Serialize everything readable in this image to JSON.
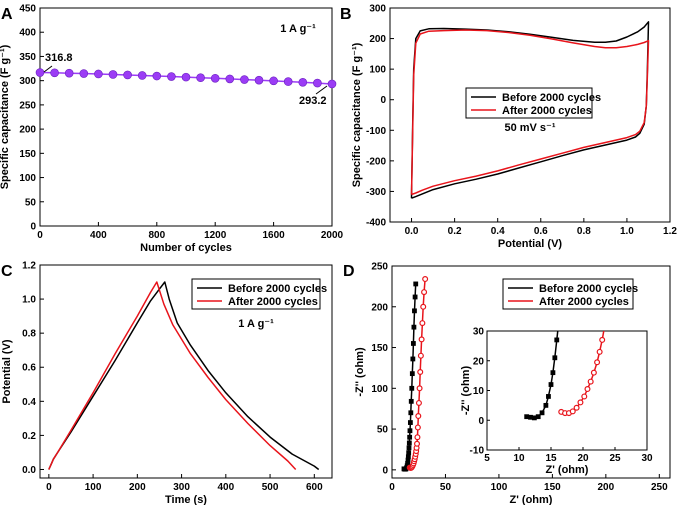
{
  "colors": {
    "black": "#000000",
    "red": "#e8141b",
    "purple": "#9b3cf5",
    "axis": "#000000"
  },
  "chart_data": [
    {
      "id": "A",
      "panel_label": "A",
      "type": "scatter",
      "xlabel": "Number of cycles",
      "ylabel": "Specific capacitance (F g⁻¹)",
      "xlim": [
        0,
        2000
      ],
      "ylim": [
        0,
        450
      ],
      "xticks": [
        0,
        400,
        800,
        1200,
        1600,
        2000
      ],
      "yticks": [
        0,
        50,
        100,
        150,
        200,
        250,
        300,
        350,
        400,
        450
      ],
      "annotation": "1 A g⁻¹",
      "labels": {
        "start": "316.8",
        "end": "293.2"
      },
      "series": [
        {
          "x": [
            0,
            100,
            200,
            300,
            400,
            500,
            600,
            700,
            800,
            900,
            1000,
            1100,
            1200,
            1300,
            1400,
            1500,
            1600,
            1700,
            1800,
            1900,
            2000
          ],
          "y": [
            316.8,
            316.2,
            315.5,
            314.7,
            313.8,
            312.8,
            311.8,
            310.7,
            309.6,
            308.5,
            307.3,
            306.1,
            304.9,
            303.6,
            302.3,
            301.0,
            299.6,
            298.1,
            296.6,
            295.0,
            293.2
          ]
        }
      ]
    },
    {
      "id": "B",
      "panel_label": "B",
      "type": "line",
      "xlabel": "Potential (V)",
      "ylabel": "Specific capacitance (F g⁻¹)",
      "xlim": [
        -0.1,
        1.2
      ],
      "ylim": [
        -400,
        300
      ],
      "xticks": [
        0.0,
        0.2,
        0.4,
        0.6,
        0.8,
        1.0,
        1.2
      ],
      "yticks": [
        -400,
        -300,
        -200,
        -100,
        0,
        100,
        200,
        300
      ],
      "annotation": "50 mV s⁻¹",
      "legend": {
        "entries": [
          "Before 2000 cycles",
          "After 2000 cycles"
        ]
      },
      "series": [
        {
          "name": "Before 2000 cycles",
          "upper": {
            "x": [
              0.0,
              0.005,
              0.01,
              0.02,
              0.04,
              0.08,
              0.15,
              0.25,
              0.35,
              0.45,
              0.55,
              0.65,
              0.75,
              0.85,
              0.9,
              0.95,
              1.0,
              1.05,
              1.08,
              1.1
            ],
            "y": [
              -322,
              -100,
              100,
              200,
              225,
              232,
              233,
              231,
              228,
              222,
              214,
              204,
              194,
              188,
              188,
              192,
              205,
              222,
              238,
              255
            ]
          },
          "lower": {
            "x": [
              1.1,
              1.095,
              1.09,
              1.08,
              1.06,
              1.04,
              1.0,
              0.9,
              0.8,
              0.7,
              0.6,
              0.5,
              0.4,
              0.3,
              0.2,
              0.1,
              0.05,
              0.02,
              0.0
            ],
            "y": [
              255,
              100,
              -20,
              -80,
              -110,
              -122,
              -132,
              -148,
              -164,
              -183,
              -203,
              -223,
              -243,
              -260,
              -275,
              -294,
              -308,
              -317,
              -322
            ]
          }
        },
        {
          "name": "After 2000 cycles",
          "upper": {
            "x": [
              0.0,
              0.005,
              0.01,
              0.02,
              0.04,
              0.08,
              0.15,
              0.25,
              0.35,
              0.45,
              0.55,
              0.65,
              0.75,
              0.85,
              0.9,
              0.95,
              1.0,
              1.05,
              1.08,
              1.1
            ],
            "y": [
              -310,
              -120,
              80,
              185,
              215,
              224,
              226,
              228,
              226,
              220,
              211,
              199,
              186,
              174,
              170,
              170,
              174,
              181,
              187,
              193
            ]
          },
          "lower": {
            "x": [
              1.1,
              1.095,
              1.09,
              1.08,
              1.06,
              1.04,
              1.0,
              0.9,
              0.8,
              0.7,
              0.6,
              0.5,
              0.4,
              0.3,
              0.2,
              0.1,
              0.05,
              0.02,
              0.0
            ],
            "y": [
              193,
              80,
              -20,
              -75,
              -103,
              -114,
              -124,
              -140,
              -156,
              -175,
              -194,
              -213,
              -233,
              -250,
              -265,
              -283,
              -296,
              -305,
              -310
            ]
          }
        }
      ]
    },
    {
      "id": "C",
      "panel_label": "C",
      "type": "line",
      "xlabel": "Time (s)",
      "ylabel": "Potential (V)",
      "xlim": [
        -20,
        640
      ],
      "ylim": [
        -0.05,
        1.2
      ],
      "xticks": [
        0,
        100,
        200,
        300,
        400,
        500,
        600
      ],
      "yticks": [
        0.0,
        0.2,
        0.4,
        0.6,
        0.8,
        1.0,
        1.2
      ],
      "annotation": "1 A g⁻¹",
      "legend": {
        "entries": [
          "Before 2000 cycles",
          "After 2000 cycles"
        ]
      },
      "series": [
        {
          "name": "Before 2000 cycles",
          "x": [
            0,
            5,
            10,
            20,
            50,
            100,
            150,
            200,
            230,
            250,
            262,
            272,
            290,
            320,
            360,
            400,
            450,
            500,
            550,
            600,
            610
          ],
          "y": [
            0.0,
            0.03,
            0.06,
            0.1,
            0.22,
            0.43,
            0.64,
            0.86,
            0.99,
            1.06,
            1.1,
            1.0,
            0.86,
            0.73,
            0.58,
            0.45,
            0.31,
            0.19,
            0.09,
            0.02,
            0.0
          ]
        },
        {
          "name": "After 2000 cycles",
          "x": [
            0,
            5,
            10,
            20,
            50,
            100,
            150,
            200,
            230,
            244,
            260,
            280,
            320,
            360,
            400,
            450,
            500,
            540,
            558
          ],
          "y": [
            0.0,
            0.03,
            0.06,
            0.1,
            0.23,
            0.45,
            0.68,
            0.9,
            1.04,
            1.1,
            0.97,
            0.85,
            0.68,
            0.54,
            0.41,
            0.27,
            0.14,
            0.05,
            0.0
          ]
        }
      ]
    },
    {
      "id": "D",
      "panel_label": "D",
      "type": "scatter",
      "xlabel": "Z' (ohm)",
      "ylabel": "-Z'' (ohm)",
      "xlim": [
        0,
        260
      ],
      "ylim": [
        -10,
        250
      ],
      "xticks": [
        0,
        50,
        100,
        150,
        200,
        250
      ],
      "yticks": [
        0,
        50,
        100,
        150,
        200,
        250
      ],
      "legend": {
        "entries": [
          "Before 2000 cycles",
          "After 2000 cycles"
        ]
      },
      "series": [
        {
          "name": "Before 2000 cycles",
          "marker": "square",
          "x": [
            11.2,
            11.8,
            12.4,
            13.0,
            13.6,
            14.2,
            14.6,
            15.0,
            15.3,
            15.6,
            15.9,
            16.2,
            16.5,
            16.8,
            17.2,
            17.6,
            18.0,
            18.5,
            19.0,
            19.5,
            20.0,
            20.5,
            21.0,
            21.6,
            22.2
          ],
          "y": [
            1.2,
            1.0,
            0.8,
            1.2,
            2.5,
            5,
            8,
            12,
            16,
            21,
            27,
            33,
            40,
            48,
            58,
            70,
            84,
            100,
            118,
            136,
            155,
            175,
            195,
            212,
            228
          ]
        },
        {
          "name": "After 2000 cycles",
          "marker": "circle",
          "x": [
            16.6,
            17.2,
            17.8,
            18.4,
            19.0,
            19.6,
            20.2,
            20.7,
            21.2,
            21.7,
            22.2,
            22.6,
            23.0,
            23.4,
            23.8,
            24.2,
            24.6,
            25.2,
            25.8,
            26.4,
            27.0,
            27.7,
            28.4,
            29.2,
            30.0,
            31.0
          ],
          "y": [
            2.8,
            2.4,
            2.4,
            3.0,
            4.2,
            6,
            8,
            10.5,
            13,
            16,
            19.5,
            23,
            27,
            32,
            40,
            52,
            66,
            82,
            100,
            120,
            140,
            160,
            180,
            200,
            218,
            234
          ]
        }
      ],
      "inset": {
        "xlim": [
          5,
          30
        ],
        "ylim": [
          -10,
          30
        ],
        "xticks": [
          5,
          10,
          15,
          20,
          25,
          30
        ],
        "yticks": [
          -10,
          0,
          10,
          20,
          30
        ],
        "xlabel": "Z' (ohm)",
        "ylabel": "-Z'' (ohm)"
      }
    }
  ]
}
